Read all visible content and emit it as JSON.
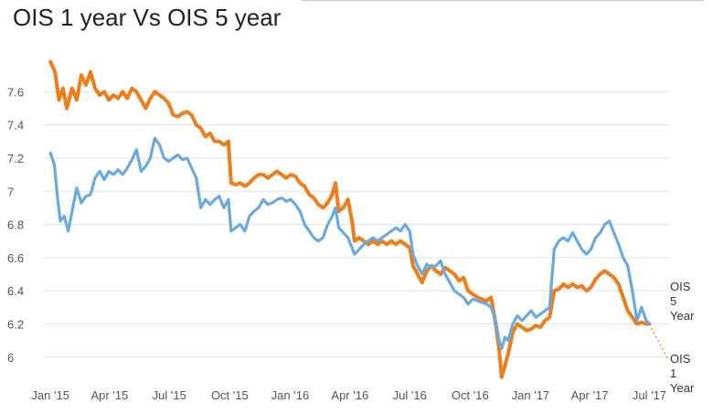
{
  "chart_data": {
    "type": "line",
    "title": "OIS 1 year Vs OIS 5 year",
    "xlabel": "",
    "ylabel": "",
    "ylim": [
      5.85,
      7.85
    ],
    "yticks": [
      6,
      6.2,
      6.4,
      6.6,
      6.8,
      7,
      7.2,
      7.4,
      7.6
    ],
    "ytick_labels": [
      "6",
      "6.2",
      "6.4",
      "6.6",
      "6.8",
      "7",
      "7.2",
      "7.4",
      "7.6"
    ],
    "xticks": [
      "2015-01-01",
      "2015-04-01",
      "2015-07-01",
      "2015-10-01",
      "2016-01-01",
      "2016-04-01",
      "2016-07-01",
      "2016-10-01",
      "2017-01-01",
      "2017-04-01",
      "2017-07-01"
    ],
    "xtick_labels": [
      "Jan '15",
      "Apr '15",
      "Jul '15",
      "Oct '15",
      "Jan '16",
      "Apr '16",
      "Jul '16",
      "Oct '16",
      "Jan '17",
      "Apr '17",
      "Jul '17"
    ],
    "xlim": [
      "2014-12-22",
      "2017-07-31"
    ],
    "grid": true,
    "legend": "inline-end-labels",
    "series": [
      {
        "name": "OIS 5 Year",
        "label": "OIS\n5\nYear",
        "color": "#ef7d1a",
        "points": [
          [
            "2015-01-01",
            7.78
          ],
          [
            "2015-01-08",
            7.72
          ],
          [
            "2015-01-14",
            7.55
          ],
          [
            "2015-01-20",
            7.62
          ],
          [
            "2015-01-26",
            7.5
          ],
          [
            "2015-02-03",
            7.62
          ],
          [
            "2015-02-10",
            7.55
          ],
          [
            "2015-02-17",
            7.7
          ],
          [
            "2015-02-24",
            7.64
          ],
          [
            "2015-03-03",
            7.72
          ],
          [
            "2015-03-10",
            7.62
          ],
          [
            "2015-03-17",
            7.58
          ],
          [
            "2015-03-24",
            7.6
          ],
          [
            "2015-03-31",
            7.55
          ],
          [
            "2015-04-07",
            7.58
          ],
          [
            "2015-04-14",
            7.56
          ],
          [
            "2015-04-21",
            7.6
          ],
          [
            "2015-04-28",
            7.56
          ],
          [
            "2015-05-05",
            7.62
          ],
          [
            "2015-05-12",
            7.6
          ],
          [
            "2015-05-19",
            7.55
          ],
          [
            "2015-05-26",
            7.5
          ],
          [
            "2015-06-02",
            7.56
          ],
          [
            "2015-06-09",
            7.6
          ],
          [
            "2015-06-16",
            7.58
          ],
          [
            "2015-06-23",
            7.56
          ],
          [
            "2015-06-30",
            7.53
          ],
          [
            "2015-07-07",
            7.46
          ],
          [
            "2015-07-14",
            7.45
          ],
          [
            "2015-07-21",
            7.47
          ],
          [
            "2015-07-28",
            7.48
          ],
          [
            "2015-08-04",
            7.46
          ],
          [
            "2015-08-11",
            7.4
          ],
          [
            "2015-08-18",
            7.38
          ],
          [
            "2015-08-25",
            7.33
          ],
          [
            "2015-09-01",
            7.35
          ],
          [
            "2015-09-08",
            7.3
          ],
          [
            "2015-09-15",
            7.3
          ],
          [
            "2015-09-22",
            7.28
          ],
          [
            "2015-09-29",
            7.3
          ],
          [
            "2015-10-03",
            7.05
          ],
          [
            "2015-10-10",
            7.04
          ],
          [
            "2015-10-17",
            7.05
          ],
          [
            "2015-10-24",
            7.03
          ],
          [
            "2015-10-31",
            7.05
          ],
          [
            "2015-11-07",
            7.08
          ],
          [
            "2015-11-14",
            7.1
          ],
          [
            "2015-11-21",
            7.1
          ],
          [
            "2015-11-28",
            7.08
          ],
          [
            "2015-12-05",
            7.1
          ],
          [
            "2015-12-12",
            7.12
          ],
          [
            "2015-12-19",
            7.1
          ],
          [
            "2015-12-26",
            7.08
          ],
          [
            "2016-01-02",
            7.1
          ],
          [
            "2016-01-09",
            7.09
          ],
          [
            "2016-01-16",
            7.05
          ],
          [
            "2016-01-23",
            7.03
          ],
          [
            "2016-01-30",
            6.98
          ],
          [
            "2016-02-06",
            6.96
          ],
          [
            "2016-02-13",
            6.92
          ],
          [
            "2016-02-20",
            6.9
          ],
          [
            "2016-02-27",
            6.93
          ],
          [
            "2016-03-05",
            6.98
          ],
          [
            "2016-03-10",
            7.05
          ],
          [
            "2016-03-15",
            6.88
          ],
          [
            "2016-03-22",
            6.9
          ],
          [
            "2016-03-29",
            6.95
          ],
          [
            "2016-04-05",
            6.8
          ],
          [
            "2016-04-08",
            6.7
          ],
          [
            "2016-04-15",
            6.72
          ],
          [
            "2016-04-22",
            6.7
          ],
          [
            "2016-04-29",
            6.68
          ],
          [
            "2016-05-06",
            6.7
          ],
          [
            "2016-05-13",
            6.68
          ],
          [
            "2016-05-20",
            6.7
          ],
          [
            "2016-05-27",
            6.68
          ],
          [
            "2016-06-03",
            6.7
          ],
          [
            "2016-06-10",
            6.68
          ],
          [
            "2016-06-17",
            6.7
          ],
          [
            "2016-06-24",
            6.68
          ],
          [
            "2016-07-01",
            6.66
          ],
          [
            "2016-07-06",
            6.55
          ],
          [
            "2016-07-13",
            6.5
          ],
          [
            "2016-07-20",
            6.45
          ],
          [
            "2016-07-27",
            6.52
          ],
          [
            "2016-08-03",
            6.55
          ],
          [
            "2016-08-10",
            6.52
          ],
          [
            "2016-08-17",
            6.5
          ],
          [
            "2016-08-24",
            6.54
          ],
          [
            "2016-08-31",
            6.52
          ],
          [
            "2016-09-07",
            6.5
          ],
          [
            "2016-09-14",
            6.46
          ],
          [
            "2016-09-21",
            6.48
          ],
          [
            "2016-09-28",
            6.4
          ],
          [
            "2016-10-05",
            6.38
          ],
          [
            "2016-10-12",
            6.36
          ],
          [
            "2016-10-19",
            6.35
          ],
          [
            "2016-10-26",
            6.34
          ],
          [
            "2016-11-02",
            6.36
          ],
          [
            "2016-11-09",
            6.2
          ],
          [
            "2016-11-14",
            6.05
          ],
          [
            "2016-11-18",
            5.88
          ],
          [
            "2016-11-23",
            5.95
          ],
          [
            "2016-11-28",
            6.02
          ],
          [
            "2016-12-05",
            6.15
          ],
          [
            "2016-12-12",
            6.2
          ],
          [
            "2016-12-19",
            6.18
          ],
          [
            "2016-12-26",
            6.16
          ],
          [
            "2017-01-02",
            6.17
          ],
          [
            "2017-01-09",
            6.19
          ],
          [
            "2017-01-16",
            6.18
          ],
          [
            "2017-01-23",
            6.22
          ],
          [
            "2017-01-30",
            6.24
          ],
          [
            "2017-02-06",
            6.4
          ],
          [
            "2017-02-13",
            6.41
          ],
          [
            "2017-02-20",
            6.44
          ],
          [
            "2017-02-27",
            6.42
          ],
          [
            "2017-03-06",
            6.44
          ],
          [
            "2017-03-13",
            6.42
          ],
          [
            "2017-03-20",
            6.43
          ],
          [
            "2017-03-27",
            6.4
          ],
          [
            "2017-04-03",
            6.42
          ],
          [
            "2017-04-10",
            6.47
          ],
          [
            "2017-04-17",
            6.5
          ],
          [
            "2017-04-24",
            6.52
          ],
          [
            "2017-05-01",
            6.5
          ],
          [
            "2017-05-08",
            6.48
          ],
          [
            "2017-05-15",
            6.44
          ],
          [
            "2017-05-22",
            6.36
          ],
          [
            "2017-05-29",
            6.28
          ],
          [
            "2017-06-05",
            6.24
          ],
          [
            "2017-06-12",
            6.2
          ],
          [
            "2017-06-19",
            6.21
          ],
          [
            "2017-06-26",
            6.2
          ],
          [
            "2017-07-01",
            6.2
          ]
        ]
      },
      {
        "name": "OIS 1 Year",
        "label": "OIS\n1\nYear",
        "color": "#6aaae3",
        "points": [
          [
            "2015-01-01",
            7.23
          ],
          [
            "2015-01-07",
            7.16
          ],
          [
            "2015-01-12",
            6.95
          ],
          [
            "2015-01-16",
            6.82
          ],
          [
            "2015-01-22",
            6.85
          ],
          [
            "2015-01-28",
            6.76
          ],
          [
            "2015-02-03",
            6.88
          ],
          [
            "2015-02-10",
            7.02
          ],
          [
            "2015-02-17",
            6.93
          ],
          [
            "2015-02-24",
            6.97
          ],
          [
            "2015-03-03",
            6.98
          ],
          [
            "2015-03-10",
            7.08
          ],
          [
            "2015-03-17",
            7.12
          ],
          [
            "2015-03-24",
            7.07
          ],
          [
            "2015-03-31",
            7.12
          ],
          [
            "2015-04-07",
            7.1
          ],
          [
            "2015-04-14",
            7.13
          ],
          [
            "2015-04-21",
            7.1
          ],
          [
            "2015-04-28",
            7.14
          ],
          [
            "2015-05-05",
            7.19
          ],
          [
            "2015-05-12",
            7.25
          ],
          [
            "2015-05-19",
            7.12
          ],
          [
            "2015-05-26",
            7.15
          ],
          [
            "2015-06-02",
            7.2
          ],
          [
            "2015-06-09",
            7.32
          ],
          [
            "2015-06-16",
            7.28
          ],
          [
            "2015-06-23",
            7.2
          ],
          [
            "2015-06-30",
            7.18
          ],
          [
            "2015-07-07",
            7.2
          ],
          [
            "2015-07-14",
            7.22
          ],
          [
            "2015-07-21",
            7.19
          ],
          [
            "2015-07-28",
            7.2
          ],
          [
            "2015-08-04",
            7.14
          ],
          [
            "2015-08-11",
            7.08
          ],
          [
            "2015-08-18",
            6.9
          ],
          [
            "2015-08-25",
            6.95
          ],
          [
            "2015-09-01",
            6.92
          ],
          [
            "2015-09-08",
            6.95
          ],
          [
            "2015-09-15",
            6.97
          ],
          [
            "2015-09-22",
            6.9
          ],
          [
            "2015-09-29",
            6.95
          ],
          [
            "2015-10-03",
            6.76
          ],
          [
            "2015-10-10",
            6.78
          ],
          [
            "2015-10-17",
            6.8
          ],
          [
            "2015-10-24",
            6.76
          ],
          [
            "2015-10-31",
            6.85
          ],
          [
            "2015-11-07",
            6.88
          ],
          [
            "2015-11-14",
            6.9
          ],
          [
            "2015-11-21",
            6.95
          ],
          [
            "2015-11-28",
            6.92
          ],
          [
            "2015-12-05",
            6.93
          ],
          [
            "2015-12-12",
            6.95
          ],
          [
            "2015-12-19",
            6.96
          ],
          [
            "2015-12-26",
            6.94
          ],
          [
            "2016-01-02",
            6.95
          ],
          [
            "2016-01-09",
            6.92
          ],
          [
            "2016-01-16",
            6.88
          ],
          [
            "2016-01-23",
            6.8
          ],
          [
            "2016-01-30",
            6.76
          ],
          [
            "2016-02-06",
            6.72
          ],
          [
            "2016-02-13",
            6.7
          ],
          [
            "2016-02-20",
            6.72
          ],
          [
            "2016-02-27",
            6.8
          ],
          [
            "2016-03-05",
            6.85
          ],
          [
            "2016-03-10",
            6.9
          ],
          [
            "2016-03-15",
            6.78
          ],
          [
            "2016-03-22",
            6.75
          ],
          [
            "2016-03-29",
            6.72
          ],
          [
            "2016-04-05",
            6.65
          ],
          [
            "2016-04-08",
            6.62
          ],
          [
            "2016-04-15",
            6.65
          ],
          [
            "2016-04-22",
            6.68
          ],
          [
            "2016-04-29",
            6.7
          ],
          [
            "2016-05-06",
            6.72
          ],
          [
            "2016-05-13",
            6.7
          ],
          [
            "2016-05-20",
            6.72
          ],
          [
            "2016-05-27",
            6.74
          ],
          [
            "2016-06-03",
            6.76
          ],
          [
            "2016-06-10",
            6.78
          ],
          [
            "2016-06-17",
            6.76
          ],
          [
            "2016-06-24",
            6.8
          ],
          [
            "2016-07-01",
            6.76
          ],
          [
            "2016-07-06",
            6.62
          ],
          [
            "2016-07-13",
            6.55
          ],
          [
            "2016-07-20",
            6.5
          ],
          [
            "2016-07-27",
            6.56
          ],
          [
            "2016-08-03",
            6.54
          ],
          [
            "2016-08-10",
            6.55
          ],
          [
            "2016-08-17",
            6.58
          ],
          [
            "2016-08-24",
            6.5
          ],
          [
            "2016-08-31",
            6.45
          ],
          [
            "2016-09-07",
            6.4
          ],
          [
            "2016-09-14",
            6.38
          ],
          [
            "2016-09-21",
            6.36
          ],
          [
            "2016-09-28",
            6.32
          ],
          [
            "2016-10-05",
            6.35
          ],
          [
            "2016-10-12",
            6.34
          ],
          [
            "2016-10-19",
            6.33
          ],
          [
            "2016-10-26",
            6.32
          ],
          [
            "2016-11-02",
            6.3
          ],
          [
            "2016-11-09",
            6.22
          ],
          [
            "2016-11-14",
            6.1
          ],
          [
            "2016-11-18",
            6.05
          ],
          [
            "2016-11-23",
            6.12
          ],
          [
            "2016-11-28",
            6.1
          ],
          [
            "2016-12-05",
            6.2
          ],
          [
            "2016-12-12",
            6.25
          ],
          [
            "2016-12-19",
            6.22
          ],
          [
            "2016-12-26",
            6.25
          ],
          [
            "2017-01-02",
            6.28
          ],
          [
            "2017-01-09",
            6.24
          ],
          [
            "2017-01-16",
            6.26
          ],
          [
            "2017-01-23",
            6.28
          ],
          [
            "2017-01-30",
            6.3
          ],
          [
            "2017-02-06",
            6.65
          ],
          [
            "2017-02-13",
            6.7
          ],
          [
            "2017-02-20",
            6.72
          ],
          [
            "2017-02-27",
            6.7
          ],
          [
            "2017-03-06",
            6.75
          ],
          [
            "2017-03-13",
            6.7
          ],
          [
            "2017-03-20",
            6.65
          ],
          [
            "2017-03-27",
            6.62
          ],
          [
            "2017-04-03",
            6.65
          ],
          [
            "2017-04-10",
            6.72
          ],
          [
            "2017-04-17",
            6.75
          ],
          [
            "2017-04-24",
            6.8
          ],
          [
            "2017-05-01",
            6.82
          ],
          [
            "2017-05-08",
            6.75
          ],
          [
            "2017-05-15",
            6.68
          ],
          [
            "2017-05-22",
            6.6
          ],
          [
            "2017-05-29",
            6.55
          ],
          [
            "2017-06-05",
            6.4
          ],
          [
            "2017-06-12",
            6.22
          ],
          [
            "2017-06-19",
            6.3
          ],
          [
            "2017-06-26",
            6.22
          ],
          [
            "2017-07-01",
            6.2
          ]
        ]
      }
    ]
  }
}
